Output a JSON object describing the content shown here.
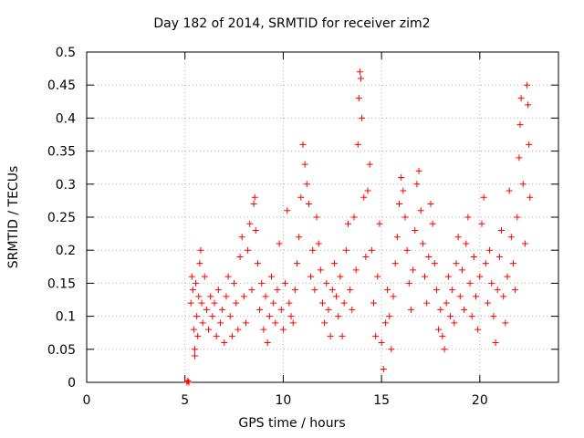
{
  "chart_data": {
    "type": "scatter",
    "title": "Day 182 of 2014, SRMTID for receiver zim2",
    "xlabel": "GPS time / hours",
    "ylabel": "SRMTID / TECUs",
    "xlim": [
      0,
      24
    ],
    "ylim": [
      0,
      0.5
    ],
    "xticks": [
      "0",
      "5",
      "10",
      "15",
      "20"
    ],
    "yticks": [
      "0",
      "0.05",
      "0.1",
      "0.15",
      "0.2",
      "0.25",
      "0.3",
      "0.35",
      "0.4",
      "0.45",
      "0.5"
    ],
    "grid": true,
    "marker": "+",
    "color": "#ff0000",
    "series": [
      {
        "name": "SRMTID",
        "points": [
          [
            5.1,
            0.0
          ],
          [
            5.15,
            0.002
          ],
          [
            5.2,
            0.0
          ],
          [
            5.3,
            0.12
          ],
          [
            5.35,
            0.16
          ],
          [
            5.4,
            0.14
          ],
          [
            5.45,
            0.08
          ],
          [
            5.5,
            0.05
          ],
          [
            5.5,
            0.04
          ],
          [
            5.55,
            0.15
          ],
          [
            5.6,
            0.1
          ],
          [
            5.65,
            0.07
          ],
          [
            5.7,
            0.13
          ],
          [
            5.75,
            0.18
          ],
          [
            5.8,
            0.2
          ],
          [
            5.85,
            0.12
          ],
          [
            5.9,
            0.09
          ],
          [
            6.0,
            0.16
          ],
          [
            6.1,
            0.11
          ],
          [
            6.2,
            0.08
          ],
          [
            6.3,
            0.13
          ],
          [
            6.4,
            0.1
          ],
          [
            6.5,
            0.12
          ],
          [
            6.6,
            0.07
          ],
          [
            6.7,
            0.14
          ],
          [
            6.8,
            0.09
          ],
          [
            6.9,
            0.11
          ],
          [
            7.0,
            0.06
          ],
          [
            7.1,
            0.13
          ],
          [
            7.2,
            0.16
          ],
          [
            7.3,
            0.1
          ],
          [
            7.4,
            0.07
          ],
          [
            7.5,
            0.15
          ],
          [
            7.6,
            0.12
          ],
          [
            7.7,
            0.08
          ],
          [
            7.8,
            0.19
          ],
          [
            7.9,
            0.22
          ],
          [
            8.0,
            0.13
          ],
          [
            8.1,
            0.09
          ],
          [
            8.2,
            0.2
          ],
          [
            8.3,
            0.24
          ],
          [
            8.4,
            0.14
          ],
          [
            8.5,
            0.27
          ],
          [
            8.55,
            0.28
          ],
          [
            8.6,
            0.23
          ],
          [
            8.7,
            0.18
          ],
          [
            8.8,
            0.11
          ],
          [
            8.9,
            0.15
          ],
          [
            9.0,
            0.08
          ],
          [
            9.1,
            0.13
          ],
          [
            9.2,
            0.06
          ],
          [
            9.3,
            0.1
          ],
          [
            9.4,
            0.16
          ],
          [
            9.5,
            0.12
          ],
          [
            9.6,
            0.09
          ],
          [
            9.7,
            0.14
          ],
          [
            9.8,
            0.21
          ],
          [
            9.9,
            0.11
          ],
          [
            10.0,
            0.08
          ],
          [
            10.1,
            0.15
          ],
          [
            10.2,
            0.26
          ],
          [
            10.3,
            0.12
          ],
          [
            10.4,
            0.1
          ],
          [
            10.5,
            0.09
          ],
          [
            10.6,
            0.14
          ],
          [
            10.7,
            0.18
          ],
          [
            10.8,
            0.22
          ],
          [
            10.9,
            0.28
          ],
          [
            11.0,
            0.36
          ],
          [
            11.1,
            0.33
          ],
          [
            11.2,
            0.3
          ],
          [
            11.3,
            0.27
          ],
          [
            11.4,
            0.16
          ],
          [
            11.5,
            0.2
          ],
          [
            11.6,
            0.14
          ],
          [
            11.7,
            0.25
          ],
          [
            11.8,
            0.21
          ],
          [
            11.9,
            0.17
          ],
          [
            12.0,
            0.12
          ],
          [
            12.1,
            0.09
          ],
          [
            12.2,
            0.15
          ],
          [
            12.3,
            0.11
          ],
          [
            12.4,
            0.07
          ],
          [
            12.5,
            0.14
          ],
          [
            12.6,
            0.18
          ],
          [
            12.7,
            0.13
          ],
          [
            12.8,
            0.1
          ],
          [
            12.9,
            0.16
          ],
          [
            13.0,
            0.07
          ],
          [
            13.1,
            0.12
          ],
          [
            13.2,
            0.2
          ],
          [
            13.3,
            0.24
          ],
          [
            13.4,
            0.14
          ],
          [
            13.5,
            0.11
          ],
          [
            13.6,
            0.25
          ],
          [
            13.7,
            0.17
          ],
          [
            13.8,
            0.36
          ],
          [
            13.85,
            0.43
          ],
          [
            13.9,
            0.47
          ],
          [
            13.95,
            0.46
          ],
          [
            14.0,
            0.4
          ],
          [
            14.1,
            0.28
          ],
          [
            14.2,
            0.19
          ],
          [
            14.3,
            0.29
          ],
          [
            14.4,
            0.33
          ],
          [
            14.5,
            0.2
          ],
          [
            14.6,
            0.12
          ],
          [
            14.7,
            0.07
          ],
          [
            14.8,
            0.16
          ],
          [
            14.9,
            0.24
          ],
          [
            15.0,
            0.06
          ],
          [
            15.1,
            0.02
          ],
          [
            15.2,
            0.09
          ],
          [
            15.3,
            0.14
          ],
          [
            15.4,
            0.1
          ],
          [
            15.5,
            0.05
          ],
          [
            15.6,
            0.13
          ],
          [
            15.7,
            0.18
          ],
          [
            15.8,
            0.22
          ],
          [
            15.9,
            0.27
          ],
          [
            16.0,
            0.31
          ],
          [
            16.1,
            0.29
          ],
          [
            16.2,
            0.25
          ],
          [
            16.3,
            0.2
          ],
          [
            16.4,
            0.15
          ],
          [
            16.5,
            0.11
          ],
          [
            16.6,
            0.17
          ],
          [
            16.7,
            0.23
          ],
          [
            16.8,
            0.3
          ],
          [
            16.9,
            0.32
          ],
          [
            17.0,
            0.26
          ],
          [
            17.1,
            0.21
          ],
          [
            17.2,
            0.16
          ],
          [
            17.3,
            0.12
          ],
          [
            17.4,
            0.19
          ],
          [
            17.5,
            0.27
          ],
          [
            17.6,
            0.24
          ],
          [
            17.7,
            0.18
          ],
          [
            17.8,
            0.14
          ],
          [
            17.9,
            0.08
          ],
          [
            18.0,
            0.11
          ],
          [
            18.1,
            0.07
          ],
          [
            18.2,
            0.05
          ],
          [
            18.3,
            0.12
          ],
          [
            18.4,
            0.16
          ],
          [
            18.5,
            0.1
          ],
          [
            18.6,
            0.14
          ],
          [
            18.7,
            0.09
          ],
          [
            18.8,
            0.18
          ],
          [
            18.9,
            0.22
          ],
          [
            19.0,
            0.13
          ],
          [
            19.1,
            0.17
          ],
          [
            19.2,
            0.11
          ],
          [
            19.3,
            0.21
          ],
          [
            19.4,
            0.25
          ],
          [
            19.5,
            0.15
          ],
          [
            19.6,
            0.1
          ],
          [
            19.7,
            0.19
          ],
          [
            19.8,
            0.13
          ],
          [
            19.9,
            0.08
          ],
          [
            20.0,
            0.16
          ],
          [
            20.1,
            0.24
          ],
          [
            20.2,
            0.28
          ],
          [
            20.3,
            0.18
          ],
          [
            20.4,
            0.12
          ],
          [
            20.5,
            0.2
          ],
          [
            20.6,
            0.15
          ],
          [
            20.7,
            0.1
          ],
          [
            20.8,
            0.06
          ],
          [
            20.9,
            0.14
          ],
          [
            21.0,
            0.19
          ],
          [
            21.1,
            0.23
          ],
          [
            21.2,
            0.13
          ],
          [
            21.3,
            0.09
          ],
          [
            21.4,
            0.16
          ],
          [
            21.5,
            0.29
          ],
          [
            21.6,
            0.22
          ],
          [
            21.7,
            0.18
          ],
          [
            21.8,
            0.14
          ],
          [
            21.9,
            0.25
          ],
          [
            22.0,
            0.34
          ],
          [
            22.05,
            0.39
          ],
          [
            22.1,
            0.43
          ],
          [
            22.2,
            0.3
          ],
          [
            22.3,
            0.21
          ],
          [
            22.4,
            0.45
          ],
          [
            22.45,
            0.42
          ],
          [
            22.5,
            0.36
          ],
          [
            22.55,
            0.28
          ]
        ]
      }
    ]
  }
}
